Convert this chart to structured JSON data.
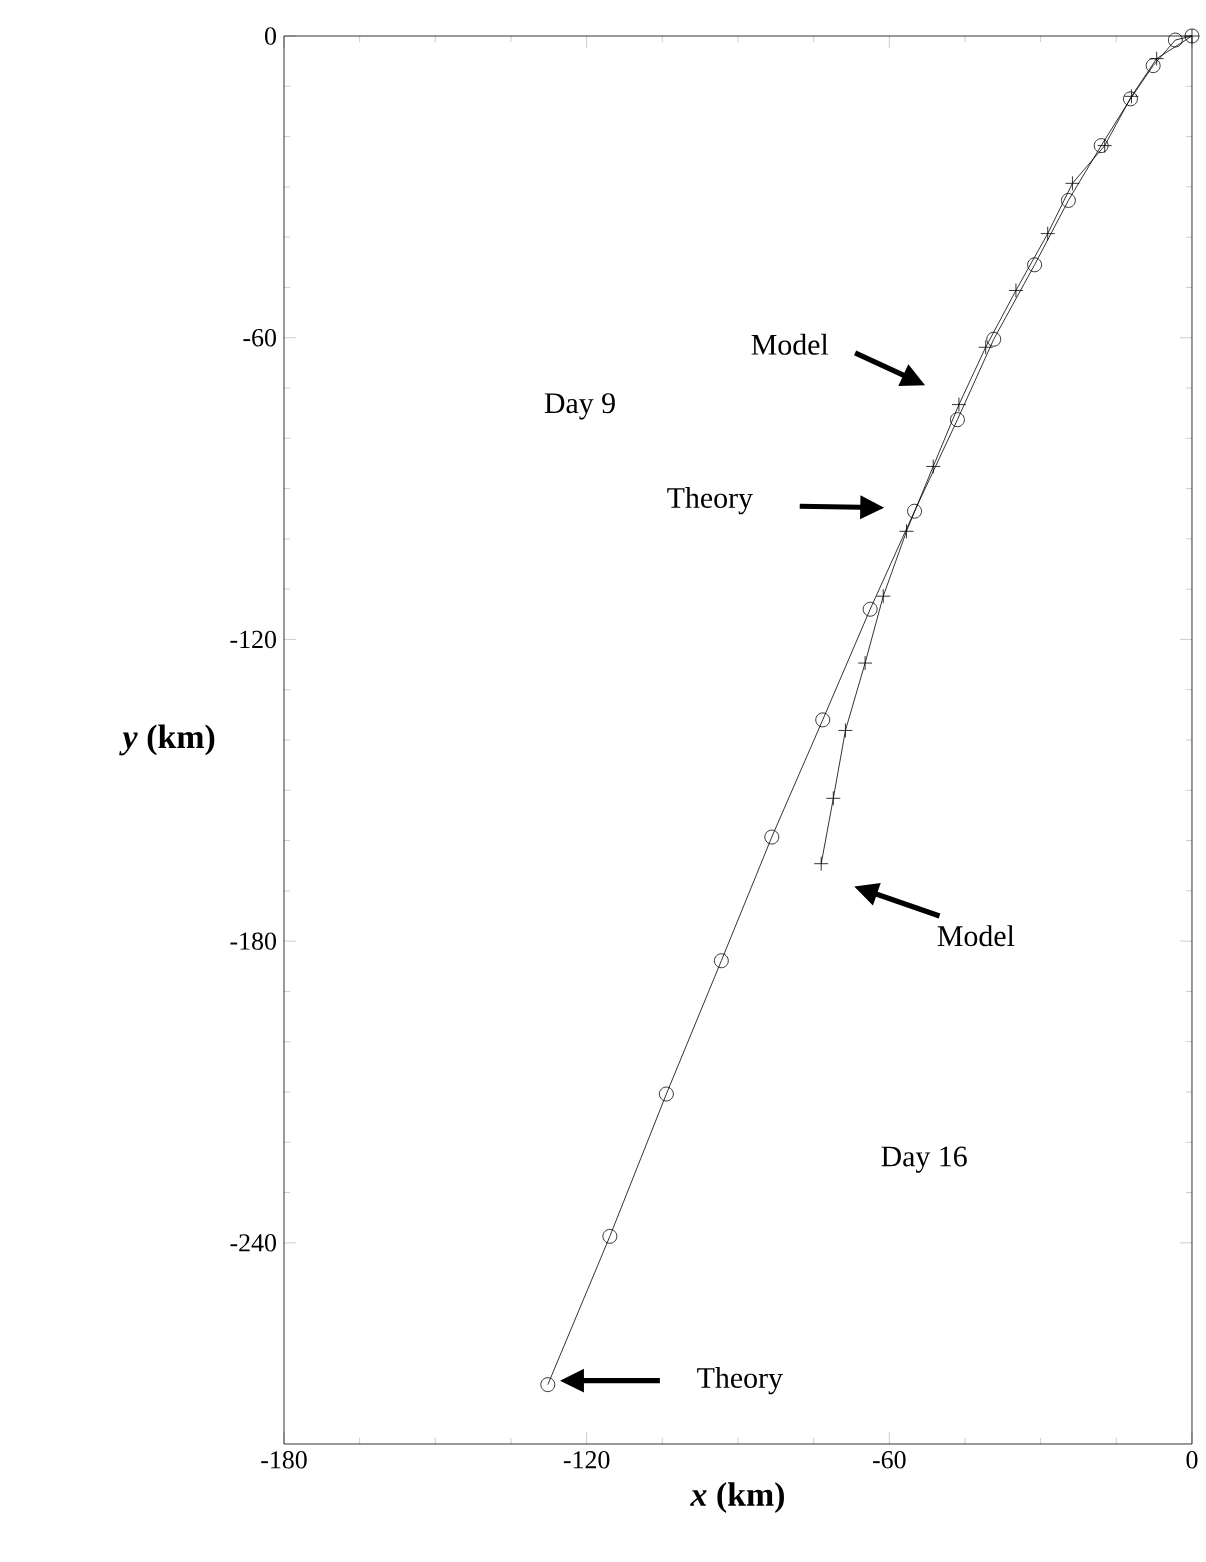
{
  "chart_data": {
    "type": "line",
    "xlabel": "*x* (km)",
    "ylabel": "*y* (km)",
    "xlim": [
      -180,
      0
    ],
    "ylim": [
      -280,
      0
    ],
    "xticks": [
      -180,
      -120,
      -60,
      0
    ],
    "yticks": [
      -240,
      -180,
      -120,
      -60,
      0
    ],
    "series": [
      {
        "color": "#000000",
        "marker": "circle",
        "x": [
          0,
          -3.3,
          -7.7,
          -12.2,
          -18.0,
          -24.5,
          -31.2,
          -39.3,
          -46.5,
          -55.0,
          -63.8,
          -73.2,
          -83.3,
          -93.3,
          -104.2,
          -115.4,
          -127.7
        ],
        "values": [
          0,
          -0.8,
          -5.9,
          -12.5,
          -21.8,
          -32.7,
          -45.5,
          -60.3,
          -76.3,
          -94.5,
          -114.0,
          -136.0,
          -159.3,
          -183.9,
          -210.4,
          -238.7,
          -268.2
        ]
      },
      {
        "color": "#000000",
        "marker": "cross",
        "x": [
          0,
          -7,
          -12,
          -17.3,
          -23.7,
          -28.6,
          -34.9,
          -40.9,
          -46.2,
          -51.3,
          -56.6,
          -61.2,
          -64.8,
          -68.7,
          -71.1,
          -73.5
        ],
        "values": [
          0,
          -4.5,
          -12,
          -21.8,
          -29.3,
          -39.3,
          -50.6,
          -61.9,
          -73.3,
          -85.6,
          -98.5,
          -111.4,
          -124.7,
          -138.1,
          -151.6,
          -164.6
        ]
      }
    ],
    "annotations": [
      "Model",
      "Theory",
      "Model",
      "Theory",
      "Day 9",
      "Day 16"
    ]
  }
}
